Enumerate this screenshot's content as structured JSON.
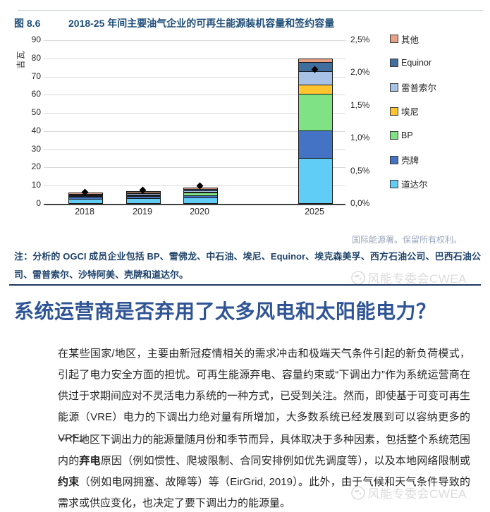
{
  "figure": {
    "number": "图 8.6",
    "title": "2018-25 年间主要油气企业的可再生能源装机容量和签约容量",
    "source": "国际能源署。保留所有权利。",
    "note": "注：分析的 OGCI 成员企业包括 BP、雪佛龙、中石油、埃尼、Equinor、埃克森美孚、西方石油公司、巴西石油公司、雷普索尔、沙特阿美、壳牌和道达尔。"
  },
  "chart_data": {
    "type": "bar",
    "stacked": true,
    "title": "2018-25 年间主要油气企业的可再生能源装机容量和签约容量",
    "categories": [
      "2018",
      "2019",
      "2020",
      "2025"
    ],
    "ylabel_left": "吉瓦",
    "ylim_left": [
      0,
      90
    ],
    "ylim_right_percent": [
      0.0,
      2.5
    ],
    "grid": true,
    "legend_position": "right",
    "series": [
      {
        "name": "道达尔",
        "color": "#5FCDF6",
        "values": [
          2.3,
          2.6,
          3.3,
          25.0
        ]
      },
      {
        "name": "壳牌",
        "color": "#4472C4",
        "values": [
          1.2,
          1.4,
          0.9,
          15.0
        ]
      },
      {
        "name": "BP",
        "color": "#7FE285",
        "values": [
          0.2,
          0.3,
          1.5,
          20.0
        ]
      },
      {
        "name": "埃尼",
        "color": "#FFC42E",
        "values": [
          0.1,
          0.1,
          0.2,
          5.0
        ]
      },
      {
        "name": "雷普索尔",
        "color": "#A7C2E4",
        "values": [
          0.4,
          0.5,
          0.8,
          7.5
        ]
      },
      {
        "name": "Equinor",
        "color": "#3E6F9F",
        "values": [
          0.2,
          0.5,
          1.0,
          5.0
        ]
      },
      {
        "name": "其他",
        "color": "#E8A184",
        "values": [
          0.1,
          0.1,
          0.2,
          1.8
        ]
      }
    ],
    "diamond_markers_gw": [
      6.5,
      7.5,
      9.8,
      74.0
    ],
    "y_left_ticks": [
      "90",
      "80",
      "70",
      "60",
      "50",
      "40",
      "30",
      "20",
      "10",
      "0"
    ],
    "y_right_ticks": [
      "2,5%",
      "2,0%",
      "1,5%",
      "1,0%",
      "0,5%",
      "0,0%"
    ]
  },
  "article": {
    "heading": "系统运营商是否弃用了太多风电和太阳能电力？",
    "para1": "在某些国家/地区，主要由新冠疫情相关的需求冲击和极端天气条件引起的新负荷模式，引起了电力安全方面的担忧。可再生能源弃电、容量约束或“下调出力”作为系统运营商在供过于求期间应对不灵活电力系统的一种方式，已受到关注。然而，即使基于可变可再生能源（VRE）电力的下调出力绝对量有所增加，大多数系统已经发展到可以容纳更多的 VRE。",
    "para2_segments": [
      {
        "t": "一个地区下调出力的能源量随月份和季节而异，具体取决于多种因素，包括整个系统范围内的"
      },
      {
        "t": "弃电",
        "b": true
      },
      {
        "t": "原因（例如惯性、爬坡限制、合同安排例如优先调度等），以及本地网络限制或"
      },
      {
        "t": "约束",
        "b": true
      },
      {
        "t": "（例如电网拥塞、故障等）等（EirGrid, 2019）。此外，由于气候和天气条件导致的需求或供应变化，也决定了要下调出力的能源量。"
      }
    ]
  },
  "watermark": {
    "text": "风能专委会CWEA"
  }
}
